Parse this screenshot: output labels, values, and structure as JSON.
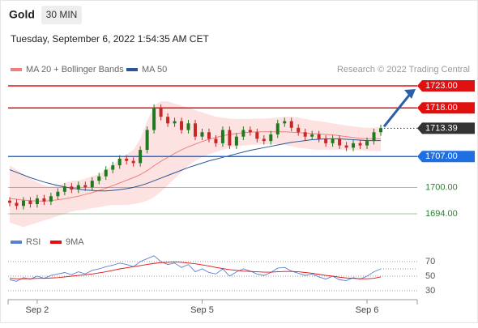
{
  "header": {
    "title": "Gold",
    "timeframe": "30 MIN",
    "timestamp": "Tuesday, September 6, 2022 1:54:35 AM CET",
    "credit": "Research © 2022 Trading Central"
  },
  "chart_data": [
    {
      "type": "candlestick",
      "categories": [
        null,
        null,
        null,
        null,
        "Sep 2",
        null,
        null,
        null,
        null,
        null,
        null,
        null,
        null,
        null,
        null,
        null,
        null,
        null,
        null,
        null,
        null,
        null,
        null,
        null,
        null,
        null,
        null,
        null,
        "Sep 5",
        null,
        null,
        null,
        null,
        null,
        null,
        null,
        null,
        null,
        null,
        null,
        null,
        null,
        null,
        null,
        null,
        null,
        null,
        null,
        null,
        null,
        null,
        null,
        "Sep 6",
        null,
        null
      ],
      "open": [
        1697.0,
        1696.5,
        1695.8,
        1697.0,
        1696.2,
        1697.5,
        1696.8,
        1698.0,
        1699.0,
        1700.2,
        1699.5,
        1700.5,
        1700.0,
        1701.5,
        1702.5,
        1704.0,
        1705.0,
        1706.5,
        1706.0,
        1705.5,
        1708.5,
        1713.0,
        1718.0,
        1716.0,
        1714.5,
        1715.0,
        1713.0,
        1714.5,
        1711.5,
        1712.5,
        1711.0,
        1710.0,
        1713.0,
        1709.5,
        1711.5,
        1713.0,
        1712.5,
        1711.0,
        1710.5,
        1712.0,
        1714.5,
        1715.0,
        1713.5,
        1712.5,
        1711.5,
        1712.0,
        1711.0,
        1710.0,
        1711.0,
        1709.5,
        1709.0,
        1710.0,
        1709.5,
        1710.5,
        1712.5
      ],
      "high": [
        1697.8,
        1697.3,
        1697.8,
        1697.8,
        1698.3,
        1698.3,
        1698.8,
        1699.8,
        1701.0,
        1701.0,
        1701.3,
        1701.3,
        1702.3,
        1703.3,
        1704.8,
        1705.8,
        1707.3,
        1707.3,
        1706.8,
        1709.3,
        1713.8,
        1718.8,
        1718.8,
        1716.8,
        1715.8,
        1715.8,
        1715.3,
        1715.3,
        1713.3,
        1713.3,
        1711.8,
        1713.8,
        1713.8,
        1712.3,
        1713.8,
        1713.8,
        1713.3,
        1711.8,
        1712.8,
        1715.3,
        1715.8,
        1715.8,
        1714.3,
        1713.3,
        1712.8,
        1712.8,
        1711.8,
        1711.8,
        1711.8,
        1710.3,
        1710.8,
        1710.8,
        1711.3,
        1713.3,
        1714.2
      ],
      "low": [
        1695.7,
        1695.0,
        1695.0,
        1695.4,
        1695.4,
        1696.0,
        1696.0,
        1697.2,
        1698.2,
        1698.7,
        1698.7,
        1699.2,
        1699.2,
        1700.7,
        1701.7,
        1703.2,
        1704.2,
        1705.2,
        1704.7,
        1704.7,
        1707.7,
        1712.2,
        1715.2,
        1713.7,
        1713.7,
        1712.2,
        1712.2,
        1710.7,
        1710.7,
        1710.2,
        1709.2,
        1709.2,
        1708.7,
        1708.7,
        1710.7,
        1711.7,
        1710.2,
        1709.7,
        1709.7,
        1711.2,
        1713.7,
        1712.7,
        1711.7,
        1710.7,
        1710.7,
        1710.2,
        1709.2,
        1709.2,
        1708.7,
        1708.2,
        1708.2,
        1708.7,
        1708.7,
        1709.7,
        1711.7
      ],
      "close": [
        1696.5,
        1695.8,
        1697.0,
        1696.2,
        1697.5,
        1696.8,
        1698.0,
        1699.0,
        1700.2,
        1699.5,
        1700.5,
        1700.0,
        1701.5,
        1702.5,
        1704.0,
        1705.0,
        1706.5,
        1706.0,
        1705.5,
        1708.5,
        1713.0,
        1718.0,
        1716.0,
        1714.5,
        1715.0,
        1713.0,
        1714.5,
        1711.5,
        1712.5,
        1711.0,
        1710.0,
        1713.0,
        1709.5,
        1711.5,
        1713.0,
        1712.5,
        1711.0,
        1710.5,
        1712.0,
        1714.5,
        1715.0,
        1713.5,
        1712.5,
        1711.5,
        1712.0,
        1711.0,
        1710.0,
        1711.0,
        1709.5,
        1709.0,
        1710.0,
        1709.5,
        1710.5,
        1712.5,
        1713.4
      ],
      "up_color": "#1f7a1f",
      "down_color": "#c62828",
      "bands": {
        "name": "MA 20 + Bollinger Bands",
        "color": "#f08080",
        "fill": "#fde2e2",
        "upper": [
          1705.0,
          1704.0,
          1703.0,
          1702.0,
          1701.2,
          1700.5,
          1700.2,
          1700.5,
          1701.0,
          1701.5,
          1701.5,
          1702.0,
          1702.5,
          1703.0,
          1704.0,
          1705.0,
          1706.5,
          1707.5,
          1708.5,
          1711.0,
          1715.0,
          1718.5,
          1719.5,
          1719.5,
          1719.0,
          1718.5,
          1718.0,
          1717.5,
          1717.0,
          1716.5,
          1716.0,
          1715.8,
          1715.6,
          1715.5,
          1715.5,
          1715.5,
          1715.6,
          1715.6,
          1715.7,
          1715.8,
          1716.0,
          1716.0,
          1715.8,
          1715.5,
          1715.2,
          1715.0,
          1714.8,
          1714.5,
          1714.3,
          1714.0,
          1713.8,
          1713.6,
          1713.5,
          1713.5,
          1713.8
        ],
        "middle": [
          1697.5,
          1697.3,
          1697.1,
          1697.0,
          1696.9,
          1696.9,
          1697.0,
          1697.2,
          1697.4,
          1697.7,
          1698.0,
          1698.4,
          1698.8,
          1699.3,
          1699.8,
          1700.4,
          1701.0,
          1701.6,
          1702.2,
          1702.9,
          1703.8,
          1704.9,
          1705.9,
          1706.8,
          1707.7,
          1708.5,
          1709.2,
          1709.8,
          1710.4,
          1710.9,
          1711.3,
          1711.7,
          1712.0,
          1712.2,
          1712.4,
          1712.5,
          1712.6,
          1712.6,
          1712.6,
          1712.6,
          1712.6,
          1712.5,
          1712.4,
          1712.3,
          1712.2,
          1712.1,
          1712.0,
          1711.9,
          1711.7,
          1711.5,
          1711.3,
          1711.1,
          1711.0,
          1711.0,
          1711.0
        ],
        "lower": [
          1692.0,
          1691.5,
          1691.0,
          1691.5,
          1692.0,
          1692.5,
          1693.0,
          1693.5,
          1694.0,
          1694.5,
          1694.8,
          1695.0,
          1695.3,
          1695.5,
          1695.8,
          1696.0,
          1696.0,
          1696.0,
          1696.2,
          1696.5,
          1697.0,
          1697.8,
          1699.0,
          1700.5,
          1702.0,
          1703.5,
          1705.0,
          1706.0,
          1706.8,
          1707.5,
          1708.0,
          1708.5,
          1709.0,
          1709.3,
          1709.5,
          1709.6,
          1709.7,
          1709.8,
          1709.8,
          1709.8,
          1709.6,
          1709.3,
          1709.0,
          1708.8,
          1708.6,
          1708.5,
          1708.5,
          1708.5,
          1708.5,
          1708.5,
          1708.5,
          1708.4,
          1708.3,
          1708.2,
          1708.2
        ]
      },
      "series": [
        {
          "name": "MA 50",
          "color": "#2a5599",
          "values": [
            1704.0,
            1703.4,
            1702.8,
            1702.2,
            1701.7,
            1701.2,
            1700.8,
            1700.4,
            1700.1,
            1699.8,
            1699.6,
            1699.4,
            1699.3,
            1699.2,
            1699.2,
            1699.3,
            1699.5,
            1699.7,
            1700.0,
            1700.4,
            1700.9,
            1701.5,
            1702.1,
            1702.7,
            1703.3,
            1703.9,
            1704.5,
            1705.0,
            1705.5,
            1706.0,
            1706.4,
            1706.8,
            1707.2,
            1707.6,
            1708.0,
            1708.4,
            1708.7,
            1709.0,
            1709.3,
            1709.6,
            1709.9,
            1710.2,
            1710.4,
            1710.6,
            1710.8,
            1710.9,
            1711.0,
            1711.0,
            1711.0,
            1710.9,
            1710.8,
            1710.7,
            1710.6,
            1710.6,
            1710.6
          ]
        }
      ],
      "levels": [
        {
          "value": 1723,
          "label": "1723.00",
          "color": "#e01010",
          "style": "box"
        },
        {
          "value": 1718,
          "label": "1718.00",
          "color": "#e01010",
          "style": "box"
        },
        {
          "value": 1713.39,
          "label": "1713.39",
          "color": "#333333",
          "style": "dotted"
        },
        {
          "value": 1707,
          "label": "1707.00",
          "color": "#1f6fe0",
          "style": "box"
        },
        {
          "value": 1700,
          "label": "1700.00",
          "color": "#2e7d32",
          "style": "text"
        },
        {
          "value": 1694,
          "label": "1694.00",
          "color": "#2e7d32",
          "style": "text"
        }
      ],
      "ylim": [
        1690.5,
        1726
      ]
    },
    {
      "type": "line",
      "series": [
        {
          "name": "RSI",
          "color": "#5b7fd6",
          "values": [
            45,
            43,
            48,
            46,
            50,
            47,
            51,
            53,
            55,
            52,
            56,
            53,
            58,
            60,
            63,
            65,
            68,
            66,
            63,
            70,
            74,
            78,
            70,
            66,
            68,
            62,
            66,
            56,
            60,
            55,
            53,
            60,
            50,
            56,
            60,
            57,
            53,
            51,
            55,
            61,
            62,
            57,
            54,
            51,
            53,
            49,
            46,
            50,
            45,
            44,
            48,
            46,
            50,
            56,
            60
          ]
        },
        {
          "name": "9MA",
          "color": "#e01010",
          "values": [
            47,
            46.5,
            46.5,
            46.5,
            47,
            47,
            47.5,
            48,
            49,
            50,
            51,
            52,
            53,
            54.5,
            56,
            58,
            60,
            61.5,
            63,
            64.5,
            66,
            67.5,
            68.5,
            69,
            69.5,
            69,
            68,
            67,
            65.5,
            64,
            62,
            60.5,
            59,
            58,
            57,
            56.5,
            56,
            55.5,
            55.5,
            56,
            56.5,
            56.5,
            56,
            55,
            54,
            52.5,
            51,
            50,
            48.5,
            47.5,
            47,
            46.5,
            46.5,
            47,
            49
          ]
        }
      ],
      "ylim": [
        15,
        85
      ],
      "yticks": [
        70,
        50,
        30
      ]
    }
  ]
}
